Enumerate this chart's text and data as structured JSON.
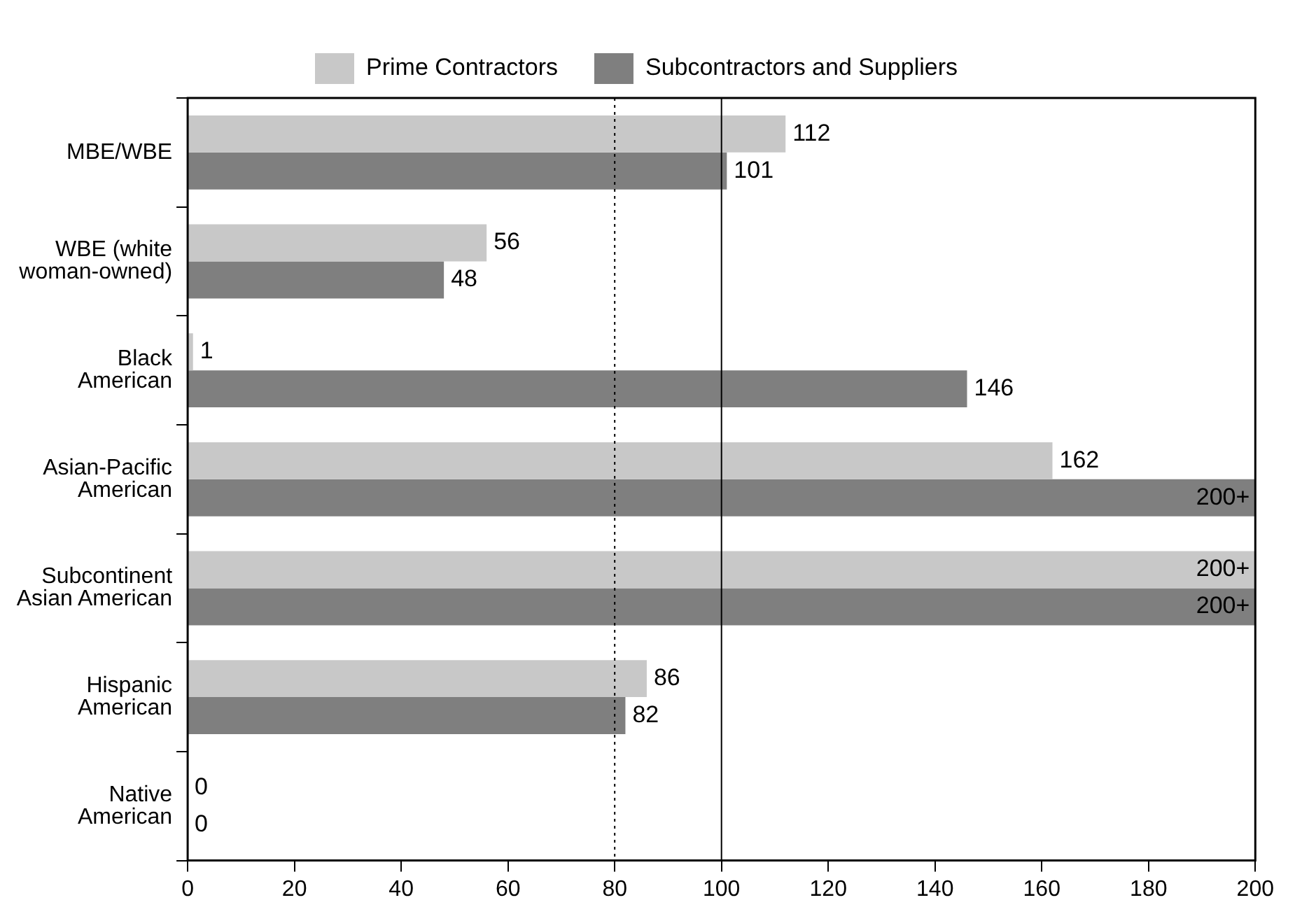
{
  "chart_data": {
    "type": "bar",
    "orientation": "horizontal",
    "categories": [
      "MBE/WBE",
      "WBE (white woman-owned)",
      "Black American",
      "Asian-Pacific American",
      "Subcontinent Asian American",
      "Hispanic American",
      "Native American"
    ],
    "series": [
      {
        "name": "Prime Contractors",
        "color": "#c8c8c8",
        "values": [
          112,
          56,
          1,
          162,
          200,
          86,
          0
        ],
        "value_labels": [
          "112",
          "56",
          "1",
          "162",
          "200+",
          "86",
          "0"
        ]
      },
      {
        "name": "Subcontractors and Suppliers",
        "color": "#7f7f7f",
        "values": [
          101,
          48,
          146,
          200,
          200,
          82,
          0
        ],
        "value_labels": [
          "101",
          "48",
          "146",
          "200+",
          "200+",
          "82",
          "0"
        ]
      }
    ],
    "xlim": [
      0,
      200
    ],
    "xticks": [
      0,
      20,
      40,
      60,
      80,
      100,
      120,
      140,
      160,
      180,
      200
    ],
    "ref_lines": [
      {
        "axis": "x",
        "value": 80,
        "color": "#000000",
        "line_style": "dotted"
      },
      {
        "axis": "x",
        "value": 100,
        "color": "#000000",
        "line_style": "solid"
      }
    ],
    "grid": false,
    "legend": "top"
  }
}
